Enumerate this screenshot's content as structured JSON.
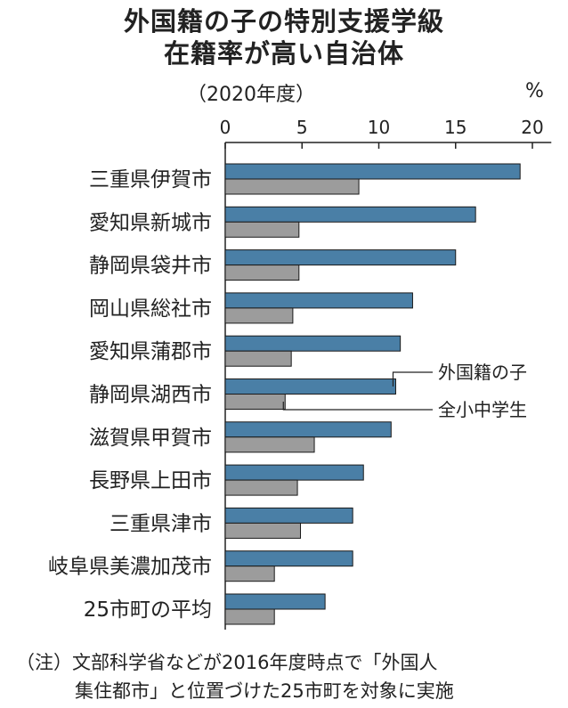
{
  "title_lines": [
    "外国籍の子の特別支援学級",
    "在籍率が高い自治体"
  ],
  "subtitle": "（2020年度）",
  "unit": "%",
  "note_lines": [
    "（注）文部科学省などが2016年度時点で「外国人",
    "集住都市」と位置づけた25市町を対象に実施"
  ],
  "colors": {
    "foreign": "#4a7fa6",
    "all": "#9c9c9c",
    "axis": "#222222"
  },
  "chart_data": {
    "type": "bar",
    "orientation": "horizontal",
    "categories": [
      "三重県伊賀市",
      "愛知県新城市",
      "静岡県袋井市",
      "岡山県総社市",
      "愛知県蒲郡市",
      "静岡県湖西市",
      "滋賀県甲賀市",
      "長野県上田市",
      "三重県津市",
      "岐阜県美濃加茂市",
      "25市町の平均"
    ],
    "series": [
      {
        "name": "外国籍の子",
        "values": [
          19.2,
          16.3,
          15.0,
          12.2,
          11.4,
          11.1,
          10.8,
          9.0,
          8.3,
          8.3,
          6.5
        ]
      },
      {
        "name": "全小中学生",
        "values": [
          8.7,
          4.8,
          4.8,
          4.4,
          4.3,
          3.9,
          5.8,
          4.7,
          4.9,
          3.2,
          3.2
        ]
      }
    ],
    "xlim": [
      0,
      21
    ],
    "xticks": [
      "0",
      "5",
      "10",
      "15",
      "20"
    ],
    "xtick_values": [
      0,
      5,
      10,
      15,
      20
    ],
    "annotated_row": 5
  }
}
